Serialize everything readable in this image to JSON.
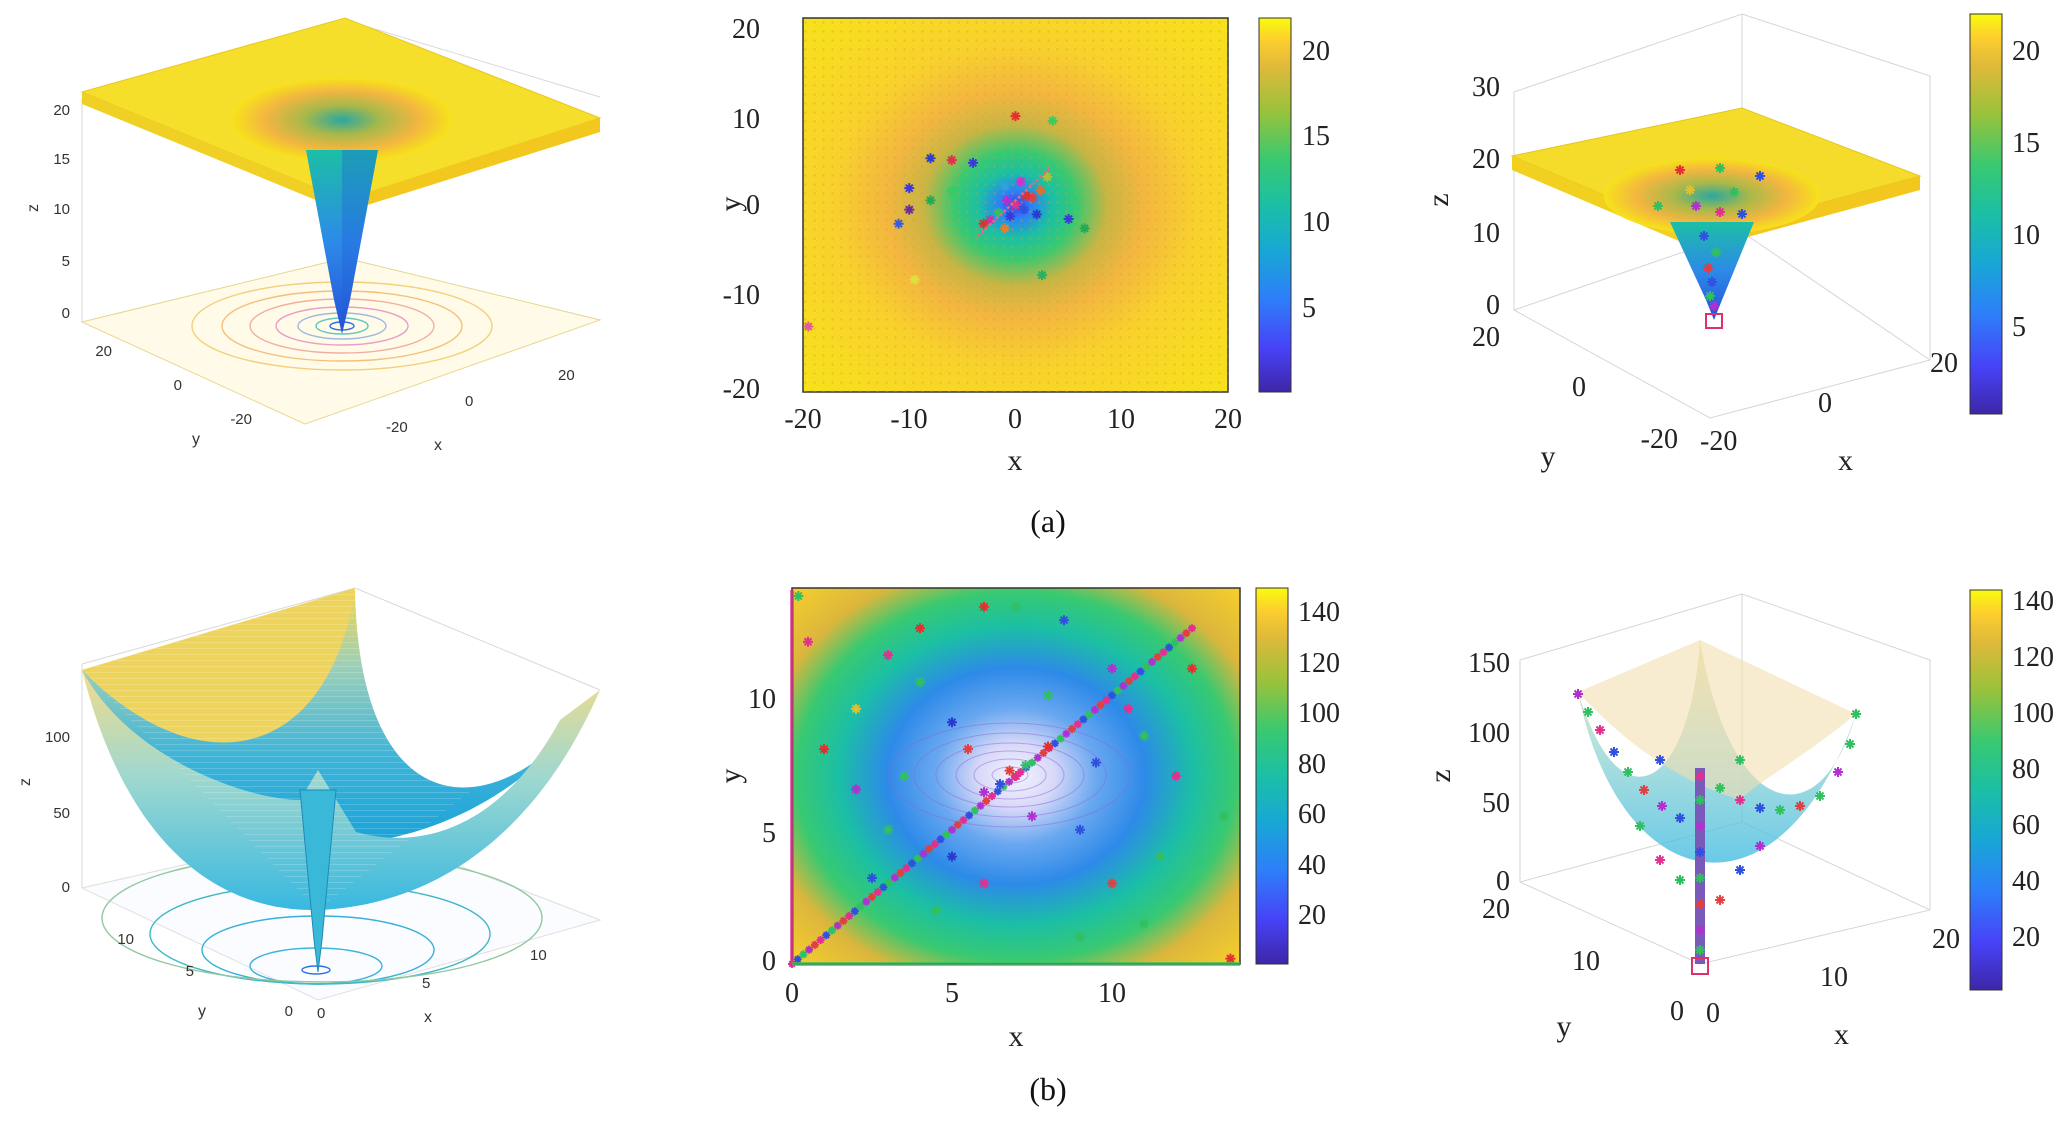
{
  "figure": {
    "caption_a": "(a)",
    "caption_b": "(b)"
  },
  "colormap": [
    "#3e26a8",
    "#4743f8",
    "#2d7ff9",
    "#18a8d4",
    "#1bbfa5",
    "#38c971",
    "#99c23b",
    "#e0b93a",
    "#fcce2e",
    "#f9fb0e"
  ],
  "chart_data": [
    {
      "id": "a_surface",
      "type": "surface3d",
      "description_of_function": "cone-shaped well",
      "xlabel": "x",
      "ylabel": "y",
      "zlabel": "z",
      "xticks": [
        "-20",
        "0",
        "20"
      ],
      "yticks": [
        "-20",
        "0",
        "20"
      ],
      "zticks": [
        "0",
        "5",
        "10",
        "15",
        "20"
      ],
      "xlim": [
        -30,
        30
      ],
      "ylim": [
        -30,
        30
      ],
      "zlim": [
        0,
        22
      ],
      "minimum": {
        "x": 0,
        "y": 0,
        "z": 0
      },
      "plateau_z": 21,
      "contour_floor": true
    },
    {
      "id": "a_topview",
      "type": "scatter_heatmap",
      "xlabel": "x",
      "ylabel": "y",
      "xticks": [
        "-20",
        "-10",
        "0",
        "10",
        "20"
      ],
      "yticks": [
        "-20",
        "-10",
        "0",
        "10",
        "20"
      ],
      "xlim": [
        -20,
        20
      ],
      "ylim": [
        -20,
        20
      ],
      "colorbar": {
        "ticks": [
          "5",
          "10",
          "15",
          "20"
        ],
        "range": [
          0.5,
          22
        ]
      },
      "points": [
        {
          "x": -8,
          "y": 5,
          "c": "#2b3fd0"
        },
        {
          "x": -6,
          "y": 4.8,
          "c": "#e0304a"
        },
        {
          "x": -4,
          "y": 4.5,
          "c": "#3a3ad8"
        },
        {
          "x": -11,
          "y": -2,
          "c": "#3a5ad8"
        },
        {
          "x": -10,
          "y": -0.5,
          "c": "#6a2aa0"
        },
        {
          "x": -8,
          "y": 0.5,
          "c": "#22aa55"
        },
        {
          "x": -6,
          "y": 1.5,
          "c": "#33cc66"
        },
        {
          "x": -10,
          "y": 1.8,
          "c": "#3a3ad8"
        },
        {
          "x": 0,
          "y": 9.5,
          "c": "#e03030"
        },
        {
          "x": 3.5,
          "y": 9,
          "c": "#3acc60"
        },
        {
          "x": 0,
          "y": 0,
          "c": "#e03090"
        },
        {
          "x": -0.8,
          "y": 0.5,
          "c": "#b030d0"
        },
        {
          "x": 0.8,
          "y": -0.5,
          "c": "#3050e0"
        },
        {
          "x": 1.6,
          "y": 0.8,
          "c": "#e04040"
        },
        {
          "x": -1.6,
          "y": -0.8,
          "c": "#30c060"
        },
        {
          "x": 2.4,
          "y": 1.6,
          "c": "#e07030"
        },
        {
          "x": -2.4,
          "y": -1.6,
          "c": "#d030a0"
        },
        {
          "x": 2,
          "y": -1,
          "c": "#2a3ad0"
        },
        {
          "x": -1,
          "y": 2,
          "c": "#30a0e0"
        },
        {
          "x": 3,
          "y": 3,
          "c": "#b0c030"
        },
        {
          "x": 1,
          "y": 1,
          "c": "#e03030"
        },
        {
          "x": 5,
          "y": -1.5,
          "c": "#3a3ad8"
        },
        {
          "x": 6.5,
          "y": -2.5,
          "c": "#22aa55"
        },
        {
          "x": 2.5,
          "y": -7.5,
          "c": "#2ab060"
        },
        {
          "x": -1,
          "y": -2.5,
          "c": "#e08030"
        },
        {
          "x": -19.5,
          "y": -13,
          "c": "#e05a9a"
        },
        {
          "x": -9.5,
          "y": -8,
          "c": "#e0e040"
        },
        {
          "x": -3,
          "y": -2,
          "c": "#e03030"
        },
        {
          "x": 0.5,
          "y": 2.5,
          "c": "#d030d0"
        },
        {
          "x": -0.5,
          "y": -1.2,
          "c": "#3a3ad8"
        }
      ]
    },
    {
      "id": "a_surface_points",
      "type": "surface3d_scatter",
      "xlabel": "x",
      "ylabel": "y",
      "zlabel": "z",
      "xticks": [
        "-20",
        "0",
        "20"
      ],
      "yticks": [
        "-20",
        "0",
        "20"
      ],
      "zticks": [
        "0",
        "10",
        "20",
        "30"
      ],
      "zlim": [
        0,
        30
      ],
      "colorbar": {
        "ticks": [
          "5",
          "10",
          "15",
          "20"
        ],
        "range": [
          0.5,
          22
        ]
      },
      "best_marker": "square"
    },
    {
      "id": "b_surface",
      "type": "surface3d",
      "xlabel": "x",
      "ylabel": "y",
      "zlabel": "z",
      "xticks": [
        "0",
        "5",
        "10"
      ],
      "yticks": [
        "0",
        "5",
        "10"
      ],
      "zticks": [
        "0",
        "50",
        "100"
      ],
      "xlim": [
        0,
        14
      ],
      "ylim": [
        0,
        14
      ],
      "zlim": [
        0,
        140
      ],
      "minimum": {
        "x": 7,
        "y": 7,
        "z": 0
      },
      "contour_floor": true
    },
    {
      "id": "b_topview",
      "type": "scatter_heatmap",
      "xlabel": "x",
      "ylabel": "y",
      "xticks": [
        "0",
        "5",
        "10"
      ],
      "yticks": [
        "0",
        "5",
        "10"
      ],
      "xlim": [
        0,
        14
      ],
      "ylim": [
        0,
        14
      ],
      "colorbar": {
        "ticks": [
          "20",
          "40",
          "60",
          "80",
          "100",
          "120",
          "140"
        ],
        "range": [
          0,
          150
        ]
      },
      "diagonal_cluster": {
        "from": [
          0,
          0
        ],
        "to": [
          12.5,
          12.5
        ]
      },
      "points": [
        {
          "x": 7,
          "y": 7,
          "c": "#e03090"
        },
        {
          "x": 6.5,
          "y": 6.7,
          "c": "#3050e0"
        },
        {
          "x": 7.3,
          "y": 7.4,
          "c": "#30c060"
        },
        {
          "x": 6.8,
          "y": 7.2,
          "c": "#e04040"
        },
        {
          "x": 6,
          "y": 6.4,
          "c": "#b030d0"
        },
        {
          "x": 8,
          "y": 8.1,
          "c": "#e03030"
        },
        {
          "x": 5,
          "y": 9,
          "c": "#2a3ad0"
        },
        {
          "x": 4,
          "y": 10.5,
          "c": "#30c060"
        },
        {
          "x": 3,
          "y": 11.5,
          "c": "#e03090"
        },
        {
          "x": 2,
          "y": 9.5,
          "c": "#e0c030"
        },
        {
          "x": 7,
          "y": 13.3,
          "c": "#30c060"
        },
        {
          "x": 6,
          "y": 13.3,
          "c": "#e03030"
        },
        {
          "x": 8.5,
          "y": 12.8,
          "c": "#3050e0"
        },
        {
          "x": 10,
          "y": 11,
          "c": "#b030d0"
        },
        {
          "x": 11,
          "y": 8.5,
          "c": "#30c060"
        },
        {
          "x": 12,
          "y": 7,
          "c": "#e03090"
        },
        {
          "x": 9,
          "y": 5,
          "c": "#3050e0"
        },
        {
          "x": 10,
          "y": 3,
          "c": "#e04040"
        },
        {
          "x": 11,
          "y": 1.5,
          "c": "#30c060"
        },
        {
          "x": 5,
          "y": 4,
          "c": "#2a3ad0"
        },
        {
          "x": 3,
          "y": 5,
          "c": "#30c060"
        },
        {
          "x": 2,
          "y": 6.5,
          "c": "#b030d0"
        },
        {
          "x": 1,
          "y": 8,
          "c": "#e03030"
        },
        {
          "x": 4.5,
          "y": 2,
          "c": "#30c060"
        },
        {
          "x": 6,
          "y": 3,
          "c": "#e03090"
        },
        {
          "x": 8,
          "y": 10,
          "c": "#30c060"
        },
        {
          "x": 9.5,
          "y": 7.5,
          "c": "#3050e0"
        },
        {
          "x": 12.5,
          "y": 11,
          "c": "#e03030"
        },
        {
          "x": 13.5,
          "y": 5.5,
          "c": "#30c060"
        },
        {
          "x": 0.5,
          "y": 12,
          "c": "#e03090"
        },
        {
          "x": 13.7,
          "y": 0.2,
          "c": "#e03030"
        },
        {
          "x": 0.2,
          "y": 13.7,
          "c": "#30c060"
        },
        {
          "x": 7.5,
          "y": 5.5,
          "c": "#b030d0"
        },
        {
          "x": 5.5,
          "y": 8,
          "c": "#e04040"
        },
        {
          "x": 3.5,
          "y": 7,
          "c": "#30c060"
        },
        {
          "x": 10.5,
          "y": 9.5,
          "c": "#e03090"
        },
        {
          "x": 2.5,
          "y": 3.2,
          "c": "#3050e0"
        },
        {
          "x": 11.5,
          "y": 4,
          "c": "#30c060"
        },
        {
          "x": 4,
          "y": 12.5,
          "c": "#e03030"
        },
        {
          "x": 9,
          "y": 1,
          "c": "#30c060"
        }
      ]
    },
    {
      "id": "b_surface_points",
      "type": "surface3d_scatter",
      "xlabel": "x",
      "ylabel": "y",
      "zlabel": "z",
      "xticks": [
        "0",
        "10",
        "20"
      ],
      "yticks": [
        "0",
        "10",
        "20"
      ],
      "zticks": [
        "0",
        "50",
        "100",
        "150"
      ],
      "zlim": [
        0,
        150
      ],
      "colorbar": {
        "ticks": [
          "20",
          "40",
          "60",
          "80",
          "100",
          "120",
          "140"
        ],
        "range": [
          0,
          150
        ]
      },
      "best_marker": "square"
    }
  ]
}
